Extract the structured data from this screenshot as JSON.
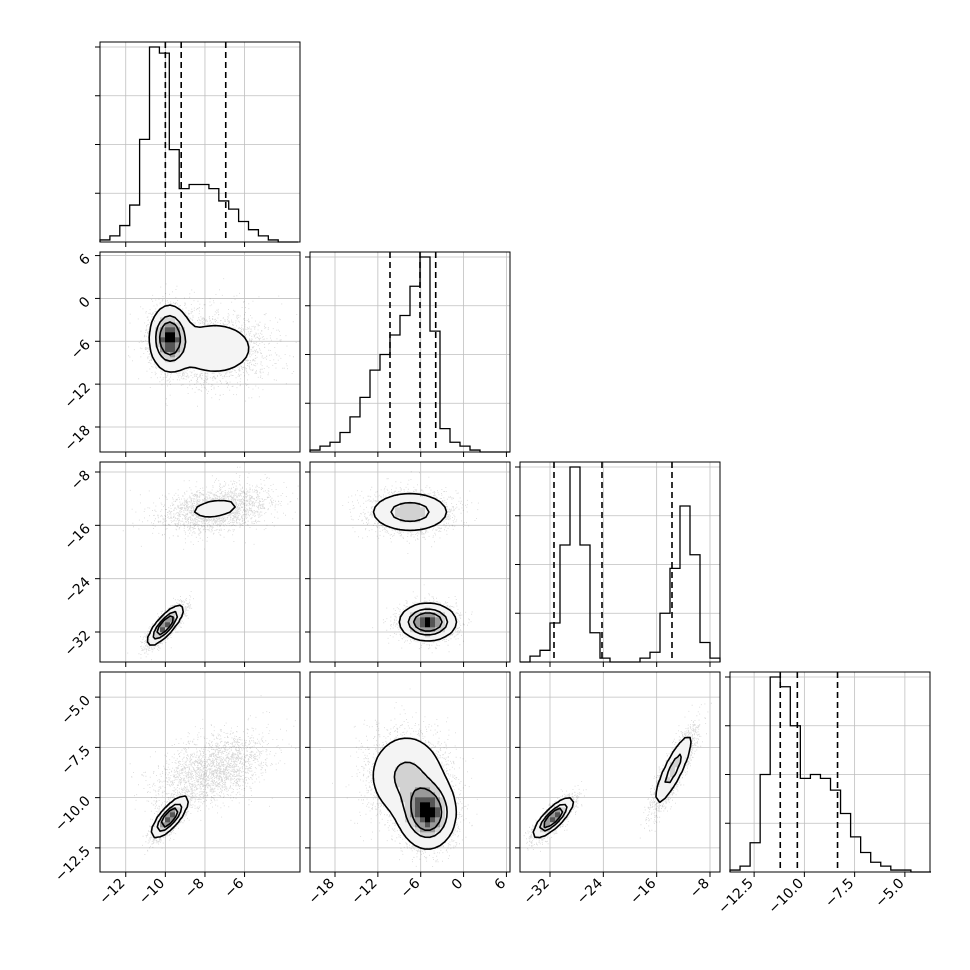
{
  "chart_data": {
    "type": "corner",
    "parameters": [
      {
        "range": [
          -13.3,
          -3.2
        ],
        "ticks": [
          "−12",
          "−10",
          "−8",
          "−6"
        ],
        "tick_values": [
          -12,
          -10,
          -8,
          -6
        ],
        "quantiles": [
          -10.0,
          -9.2,
          -6.95
        ]
      },
      {
        "range": [
          -21.5,
          6.5
        ],
        "ticks": [
          "−18",
          "−12",
          "−6",
          "0",
          "6"
        ],
        "tick_values": [
          -18,
          -12,
          -6,
          0,
          6
        ],
        "quantiles": [
          -10.3,
          -6.1,
          -3.9
        ]
      },
      {
        "range": [
          -36.5,
          -6.5
        ],
        "ticks": [
          "−32",
          "−24",
          "−16",
          "−8"
        ],
        "tick_values": [
          -32,
          -24,
          -16,
          -8
        ],
        "quantiles": [
          -31.4,
          -24.2,
          -13.7
        ]
      },
      {
        "range": [
          -13.7,
          -3.75
        ],
        "ticks": [
          "−12.5",
          "−10.0",
          "−7.5",
          "−5.0"
        ],
        "tick_values": [
          -12.5,
          -10.0,
          -7.5,
          -5.0
        ],
        "quantiles": [
          -11.2,
          -10.35,
          -8.35
        ]
      }
    ],
    "histograms": [
      {
        "param": 0,
        "x0": -13.3,
        "bin_width": 0.5,
        "counts": [
          0.01,
          0.03,
          0.08,
          0.18,
          0.5,
          0.95,
          0.92,
          0.45,
          0.26,
          0.28,
          0.28,
          0.26,
          0.2,
          0.16,
          0.1,
          0.06,
          0.03,
          0.01,
          0.0,
          0.0
        ]
      },
      {
        "param": 1,
        "x0": -21.5,
        "bin_width": 1.4,
        "counts": [
          0.01,
          0.03,
          0.05,
          0.1,
          0.18,
          0.28,
          0.42,
          0.5,
          0.6,
          0.7,
          0.85,
          1.0,
          0.62,
          0.12,
          0.05,
          0.03,
          0.01,
          0.0,
          0.0,
          0.0
        ]
      },
      {
        "param": 2,
        "x0": -36.5,
        "bin_width": 1.5,
        "counts": [
          0.0,
          0.03,
          0.06,
          0.2,
          0.6,
          1.0,
          0.6,
          0.15,
          0.02,
          0.0,
          0.0,
          0.0,
          0.02,
          0.05,
          0.25,
          0.48,
          0.8,
          0.55,
          0.1,
          0.02
        ]
      },
      {
        "param": 3,
        "x0": -13.7,
        "bin_width": 0.5,
        "counts": [
          0.01,
          0.03,
          0.15,
          0.5,
          1.0,
          0.95,
          0.75,
          0.48,
          0.5,
          0.48,
          0.42,
          0.3,
          0.18,
          0.1,
          0.05,
          0.03,
          0.01,
          0.01,
          0.0,
          0.0
        ]
      }
    ],
    "joint": [
      {
        "row": 1,
        "col": 0,
        "modes": [
          {
            "x": -9.8,
            "y": -5.5,
            "sx": 0.5,
            "sy": 2.3,
            "rho": 0.0,
            "weight": 0.5
          },
          {
            "x": -7.5,
            "y": -7.0,
            "sx": 1.4,
            "sy": 2.6,
            "rho": 0.0,
            "weight": 0.5
          }
        ]
      },
      {
        "row": 2,
        "col": 0,
        "modes": [
          {
            "x": -7.5,
            "y": -13.5,
            "sx": 1.4,
            "sy": 1.7,
            "rho": 0.3,
            "weight": 0.5
          },
          {
            "x": -10.0,
            "y": -31.0,
            "sx": 0.45,
            "sy": 1.5,
            "rho": 0.8,
            "weight": 0.5
          }
        ]
      },
      {
        "row": 2,
        "col": 1,
        "modes": [
          {
            "x": -7.5,
            "y": -14.0,
            "sx": 3.0,
            "sy": 1.6,
            "rho": 0.0,
            "weight": 0.5
          },
          {
            "x": -5.0,
            "y": -30.5,
            "sx": 2.0,
            "sy": 1.4,
            "rho": 0.0,
            "weight": 0.5
          }
        ]
      },
      {
        "row": 3,
        "col": 0,
        "modes": [
          {
            "x": -7.6,
            "y": -8.6,
            "sx": 1.4,
            "sy": 0.9,
            "rho": 0.45,
            "weight": 0.5
          },
          {
            "x": -9.8,
            "y": -11.0,
            "sx": 0.45,
            "sy": 0.5,
            "rho": 0.75,
            "weight": 0.5
          }
        ]
      },
      {
        "row": 3,
        "col": 1,
        "modes": [
          {
            "x": -8.0,
            "y": -8.9,
            "sx": 3.0,
            "sy": 1.2,
            "rho": 0.0,
            "weight": 0.5
          },
          {
            "x": -5.0,
            "y": -10.8,
            "sx": 2.0,
            "sy": 0.9,
            "rho": 0.0,
            "weight": 0.5
          }
        ]
      },
      {
        "row": 3,
        "col": 2,
        "modes": [
          {
            "x": -31.5,
            "y": -11.0,
            "sx": 1.5,
            "sy": 0.5,
            "rho": 0.8,
            "weight": 0.5
          },
          {
            "x": -13.5,
            "y": -8.6,
            "sx": 1.6,
            "sy": 1.0,
            "rho": 0.85,
            "weight": 0.5
          }
        ]
      }
    ],
    "grid": true,
    "xlabel": "",
    "ylabel": "",
    "title": ""
  }
}
